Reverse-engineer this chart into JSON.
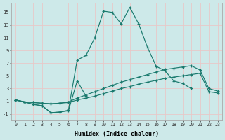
{
  "xlabel": "Humidex (Indice chaleur)",
  "bg_color": "#cde9e9",
  "grid_color": "#e8c8c8",
  "line_color": "#1a7a6e",
  "xlim": [
    -0.5,
    23.5
  ],
  "ylim": [
    -2.0,
    16.5
  ],
  "xticks": [
    0,
    1,
    2,
    3,
    4,
    5,
    6,
    7,
    8,
    9,
    10,
    11,
    12,
    13,
    14,
    15,
    16,
    17,
    18,
    19,
    20,
    21,
    22,
    23
  ],
  "yticks": [
    -1,
    1,
    3,
    5,
    7,
    9,
    11,
    13,
    15
  ],
  "series": [
    {
      "x": [
        0,
        1,
        2,
        3,
        4,
        5,
        6,
        7,
        8
      ],
      "y": [
        1.2,
        0.9,
        0.5,
        0.3,
        -0.8,
        -0.7,
        -0.5,
        4.2,
        1.8
      ]
    },
    {
      "x": [
        0,
        1,
        2,
        3,
        4,
        5,
        6,
        7,
        8,
        9,
        10,
        11,
        12,
        13,
        14,
        15,
        16,
        17,
        18,
        19,
        20,
        21,
        22,
        23
      ],
      "y": [
        1.2,
        0.9,
        0.8,
        0.7,
        0.6,
        0.7,
        0.8,
        1.2,
        1.5,
        1.8,
        2.2,
        2.6,
        3.0,
        3.3,
        3.7,
        4.0,
        4.3,
        4.6,
        4.8,
        5.0,
        5.2,
        5.4,
        2.5,
        2.3
      ]
    },
    {
      "x": [
        0,
        1,
        2,
        3,
        4,
        5,
        6,
        7,
        8,
        9,
        10,
        11,
        12,
        13,
        14,
        15,
        16,
        17,
        18,
        19,
        20,
        21,
        22,
        23
      ],
      "y": [
        1.2,
        0.9,
        0.8,
        0.7,
        0.6,
        0.7,
        0.9,
        1.5,
        2.0,
        2.5,
        3.0,
        3.5,
        4.0,
        4.4,
        4.8,
        5.2,
        5.6,
        6.0,
        6.2,
        6.4,
        6.6,
        5.9,
        3.0,
        2.6
      ]
    },
    {
      "x": [
        0,
        1,
        2,
        3,
        4,
        5,
        6,
        7,
        8,
        9,
        10,
        11,
        12,
        13,
        14,
        15,
        16,
        17,
        18,
        19,
        20
      ],
      "y": [
        1.2,
        0.9,
        0.5,
        0.3,
        -0.8,
        -0.7,
        -0.4,
        7.5,
        8.2,
        11.0,
        15.2,
        15.0,
        13.2,
        15.8,
        13.2,
        9.5,
        6.5,
        5.8,
        4.2,
        3.8,
        3.0
      ]
    }
  ]
}
